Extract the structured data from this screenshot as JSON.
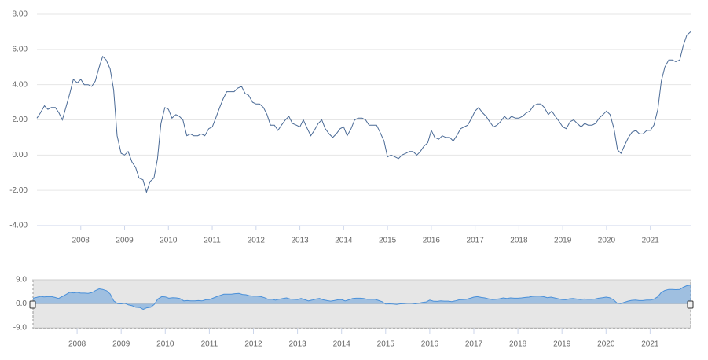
{
  "chart_data": {
    "type": "line",
    "x": [
      2007.0,
      2007.08,
      2007.17,
      2007.25,
      2007.33,
      2007.42,
      2007.5,
      2007.58,
      2007.67,
      2007.75,
      2007.83,
      2007.92,
      2008.0,
      2008.08,
      2008.17,
      2008.25,
      2008.33,
      2008.42,
      2008.5,
      2008.58,
      2008.67,
      2008.75,
      2008.83,
      2008.92,
      2009.0,
      2009.08,
      2009.17,
      2009.25,
      2009.33,
      2009.42,
      2009.5,
      2009.58,
      2009.67,
      2009.75,
      2009.83,
      2009.92,
      2010.0,
      2010.08,
      2010.17,
      2010.25,
      2010.33,
      2010.42,
      2010.5,
      2010.58,
      2010.67,
      2010.75,
      2010.83,
      2010.92,
      2011.0,
      2011.08,
      2011.17,
      2011.25,
      2011.33,
      2011.42,
      2011.5,
      2011.58,
      2011.67,
      2011.75,
      2011.83,
      2011.92,
      2012.0,
      2012.08,
      2012.17,
      2012.25,
      2012.33,
      2012.42,
      2012.5,
      2012.58,
      2012.67,
      2012.75,
      2012.83,
      2012.92,
      2013.0,
      2013.08,
      2013.17,
      2013.25,
      2013.33,
      2013.42,
      2013.5,
      2013.58,
      2013.67,
      2013.75,
      2013.83,
      2013.92,
      2014.0,
      2014.08,
      2014.17,
      2014.25,
      2014.33,
      2014.42,
      2014.5,
      2014.58,
      2014.67,
      2014.75,
      2014.83,
      2014.92,
      2015.0,
      2015.08,
      2015.17,
      2015.25,
      2015.33,
      2015.42,
      2015.5,
      2015.58,
      2015.67,
      2015.75,
      2015.83,
      2015.92,
      2016.0,
      2016.08,
      2016.17,
      2016.25,
      2016.33,
      2016.42,
      2016.5,
      2016.58,
      2016.67,
      2016.75,
      2016.83,
      2016.92,
      2017.0,
      2017.08,
      2017.17,
      2017.25,
      2017.33,
      2017.42,
      2017.5,
      2017.58,
      2017.67,
      2017.75,
      2017.83,
      2017.92,
      2018.0,
      2018.08,
      2018.17,
      2018.25,
      2018.33,
      2018.42,
      2018.5,
      2018.58,
      2018.67,
      2018.75,
      2018.83,
      2018.92,
      2019.0,
      2019.08,
      2019.17,
      2019.25,
      2019.33,
      2019.42,
      2019.5,
      2019.58,
      2019.67,
      2019.75,
      2019.83,
      2019.92,
      2020.0,
      2020.08,
      2020.17,
      2020.25,
      2020.33,
      2020.42,
      2020.5,
      2020.58,
      2020.67,
      2020.75,
      2020.83,
      2020.92,
      2021.0,
      2021.08,
      2021.17,
      2021.25,
      2021.33,
      2021.42,
      2021.5,
      2021.58,
      2021.67,
      2021.75,
      2021.83,
      2021.92
    ],
    "series": [
      {
        "color": "#4a6a96",
        "values": [
          2.1,
          2.4,
          2.8,
          2.6,
          2.7,
          2.7,
          2.4,
          2.0,
          2.8,
          3.5,
          4.3,
          4.1,
          4.3,
          4.0,
          4.0,
          3.9,
          4.2,
          5.0,
          5.6,
          5.4,
          4.9,
          3.7,
          1.1,
          0.1,
          0.0,
          0.2,
          -0.4,
          -0.7,
          -1.3,
          -1.4,
          -2.1,
          -1.5,
          -1.3,
          -0.2,
          1.8,
          2.7,
          2.6,
          2.1,
          2.3,
          2.2,
          2.0,
          1.1,
          1.2,
          1.1,
          1.1,
          1.2,
          1.1,
          1.5,
          1.6,
          2.1,
          2.7,
          3.2,
          3.6,
          3.6,
          3.6,
          3.8,
          3.9,
          3.5,
          3.4,
          3.0,
          2.9,
          2.9,
          2.7,
          2.3,
          1.7,
          1.7,
          1.4,
          1.7,
          2.0,
          2.2,
          1.8,
          1.7,
          1.6,
          2.0,
          1.5,
          1.1,
          1.4,
          1.8,
          2.0,
          1.5,
          1.2,
          1.0,
          1.2,
          1.5,
          1.6,
          1.1,
          1.5,
          2.0,
          2.1,
          2.1,
          2.0,
          1.7,
          1.7,
          1.7,
          1.3,
          0.8,
          -0.1,
          0.0,
          -0.1,
          -0.2,
          0.0,
          0.1,
          0.2,
          0.2,
          0.0,
          0.2,
          0.5,
          0.7,
          1.4,
          1.0,
          0.9,
          1.1,
          1.0,
          1.0,
          0.8,
          1.1,
          1.5,
          1.6,
          1.7,
          2.1,
          2.5,
          2.7,
          2.4,
          2.2,
          1.9,
          1.6,
          1.7,
          1.9,
          2.2,
          2.0,
          2.2,
          2.1,
          2.1,
          2.2,
          2.4,
          2.5,
          2.8,
          2.9,
          2.9,
          2.7,
          2.3,
          2.5,
          2.2,
          1.9,
          1.6,
          1.5,
          1.9,
          2.0,
          1.8,
          1.6,
          1.8,
          1.7,
          1.7,
          1.8,
          2.1,
          2.3,
          2.5,
          2.3,
          1.5,
          0.3,
          0.1,
          0.6,
          1.0,
          1.3,
          1.4,
          1.2,
          1.2,
          1.4,
          1.4,
          1.7,
          2.6,
          4.2,
          5.0,
          5.4,
          5.4,
          5.3,
          5.4,
          6.2,
          6.8,
          7.0
        ]
      }
    ],
    "xlim": [
      2007.0,
      2021.92
    ],
    "xticks": [
      2008,
      2009,
      2010,
      2011,
      2012,
      2013,
      2014,
      2015,
      2016,
      2017,
      2018,
      2019,
      2020,
      2021
    ],
    "ylim": [
      -4,
      8
    ],
    "yticks": [
      {
        "value": -4,
        "label": "-4.00"
      },
      {
        "value": -2,
        "label": "-2.00"
      },
      {
        "value": 0,
        "label": "0.00"
      },
      {
        "value": 2,
        "label": "2.00"
      },
      {
        "value": 4,
        "label": "4.00"
      },
      {
        "value": 6,
        "label": "6.00"
      },
      {
        "value": 8,
        "label": "8.00"
      }
    ],
    "grid": true,
    "navigator": {
      "ylim": [
        -9,
        9
      ],
      "yticks": [
        {
          "value": -9,
          "label": "-9.0"
        },
        {
          "value": 0,
          "label": "0.0"
        },
        {
          "value": 9,
          "label": "9.0"
        }
      ],
      "color": "#4a90d9"
    }
  }
}
